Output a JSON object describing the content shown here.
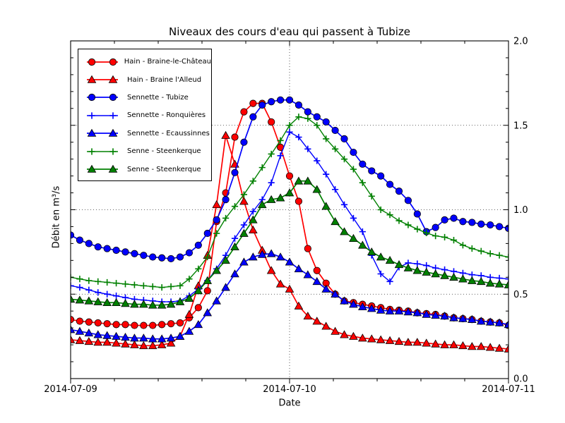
{
  "chart_data": {
    "type": "line",
    "title": "Niveaux des cours d'eau qui passent à Tubize",
    "xlabel": "Date",
    "ylabel": "Débit en m³/s",
    "x_tick_labels": [
      "2014-07-09",
      "2014-07-10",
      "2014-07-11"
    ],
    "y_tick_labels": [
      "0.0",
      "0.5",
      "1.0",
      "1.5",
      "2.0"
    ],
    "ylim": [
      0.0,
      2.0
    ],
    "x_range_hours": 48,
    "sample_interval_hours": 1,
    "x_minor_ticks_per_day": 5,
    "y_minor_step": 0.1,
    "grid": {
      "h_values": [
        0.5,
        1.0,
        1.5
      ],
      "v_hours": [
        24
      ],
      "style": "dotted"
    },
    "legend": {
      "position": "upper-left"
    },
    "series": [
      {
        "name": "Hain - Braine-le-Château",
        "color": "#ff0000",
        "marker": "circle",
        "values": [
          0.35,
          0.34,
          0.335,
          0.33,
          0.325,
          0.32,
          0.32,
          0.315,
          0.315,
          0.315,
          0.32,
          0.325,
          0.33,
          0.36,
          0.42,
          0.52,
          0.93,
          1.1,
          1.43,
          1.58,
          1.63,
          1.63,
          1.52,
          1.37,
          1.2,
          1.05,
          0.77,
          0.64,
          0.565,
          0.5,
          0.46,
          0.45,
          0.44,
          0.43,
          0.42,
          0.41,
          0.405,
          0.4,
          0.39,
          0.385,
          0.38,
          0.37,
          0.36,
          0.355,
          0.35,
          0.34,
          0.335,
          0.33,
          0.315
        ]
      },
      {
        "name": "Hain - Braine l'Alleud",
        "color": "#ff0000",
        "marker": "triangle",
        "values": [
          0.23,
          0.225,
          0.22,
          0.215,
          0.215,
          0.21,
          0.205,
          0.2,
          0.195,
          0.195,
          0.2,
          0.21,
          0.25,
          0.38,
          0.55,
          0.73,
          1.03,
          1.44,
          1.27,
          1.05,
          0.88,
          0.76,
          0.64,
          0.56,
          0.53,
          0.43,
          0.37,
          0.34,
          0.31,
          0.28,
          0.26,
          0.25,
          0.24,
          0.235,
          0.23,
          0.225,
          0.22,
          0.215,
          0.215,
          0.21,
          0.205,
          0.2,
          0.2,
          0.195,
          0.19,
          0.19,
          0.185,
          0.18,
          0.175
        ]
      },
      {
        "name": "Sennette - Tubize",
        "color": "#0000ff",
        "marker": "circle",
        "values": [
          0.85,
          0.82,
          0.8,
          0.78,
          0.77,
          0.76,
          0.75,
          0.74,
          0.73,
          0.72,
          0.715,
          0.71,
          0.72,
          0.745,
          0.79,
          0.86,
          0.94,
          1.06,
          1.22,
          1.4,
          1.55,
          1.62,
          1.64,
          1.65,
          1.65,
          1.62,
          1.58,
          1.55,
          1.52,
          1.47,
          1.42,
          1.34,
          1.27,
          1.23,
          1.2,
          1.15,
          1.11,
          1.055,
          0.975,
          0.87,
          0.895,
          0.94,
          0.95,
          0.93,
          0.925,
          0.915,
          0.91,
          0.9,
          0.89
        ]
      },
      {
        "name": "Sennette - Ronquières",
        "color": "#0000ff",
        "marker": "plus",
        "values": [
          0.55,
          0.54,
          0.525,
          0.51,
          0.5,
          0.49,
          0.48,
          0.47,
          0.465,
          0.46,
          0.455,
          0.455,
          0.46,
          0.49,
          0.53,
          0.58,
          0.65,
          0.73,
          0.83,
          0.91,
          0.99,
          1.06,
          1.16,
          1.32,
          1.46,
          1.43,
          1.36,
          1.29,
          1.21,
          1.12,
          1.03,
          0.95,
          0.87,
          0.73,
          0.62,
          0.575,
          0.66,
          0.685,
          0.68,
          0.67,
          0.655,
          0.645,
          0.635,
          0.625,
          0.615,
          0.61,
          0.6,
          0.595,
          0.59
        ]
      },
      {
        "name": "Sennette - Ecaussinnes",
        "color": "#0000ff",
        "marker": "triangle",
        "values": [
          0.29,
          0.28,
          0.27,
          0.26,
          0.255,
          0.25,
          0.245,
          0.24,
          0.24,
          0.235,
          0.235,
          0.24,
          0.25,
          0.28,
          0.32,
          0.39,
          0.46,
          0.54,
          0.62,
          0.69,
          0.72,
          0.735,
          0.74,
          0.72,
          0.69,
          0.65,
          0.615,
          0.575,
          0.53,
          0.5,
          0.46,
          0.44,
          0.425,
          0.415,
          0.405,
          0.4,
          0.4,
          0.395,
          0.39,
          0.38,
          0.375,
          0.37,
          0.36,
          0.355,
          0.35,
          0.34,
          0.335,
          0.33,
          0.32
        ]
      },
      {
        "name": "Senne - Steenkerque",
        "color": "#008000",
        "marker": "plus",
        "values": [
          0.6,
          0.59,
          0.58,
          0.575,
          0.57,
          0.565,
          0.56,
          0.555,
          0.55,
          0.545,
          0.54,
          0.545,
          0.55,
          0.59,
          0.65,
          0.72,
          0.86,
          0.95,
          1.02,
          1.09,
          1.17,
          1.25,
          1.33,
          1.41,
          1.5,
          1.55,
          1.54,
          1.5,
          1.42,
          1.36,
          1.3,
          1.24,
          1.16,
          1.08,
          1.0,
          0.97,
          0.935,
          0.91,
          0.885,
          0.8625,
          0.845,
          0.8375,
          0.82,
          0.79,
          0.77,
          0.755,
          0.74,
          0.73,
          0.72
        ]
      },
      {
        "name": "Senne - Steenkerque",
        "color": "#008000",
        "marker": "triangle",
        "values": [
          0.47,
          0.465,
          0.46,
          0.455,
          0.45,
          0.45,
          0.445,
          0.44,
          0.44,
          0.435,
          0.435,
          0.44,
          0.455,
          0.475,
          0.52,
          0.58,
          0.64,
          0.7,
          0.78,
          0.86,
          0.94,
          1.03,
          1.06,
          1.07,
          1.1,
          1.17,
          1.17,
          1.12,
          1.02,
          0.93,
          0.87,
          0.83,
          0.79,
          0.75,
          0.72,
          0.7,
          0.675,
          0.655,
          0.64,
          0.63,
          0.62,
          0.61,
          0.6,
          0.59,
          0.58,
          0.575,
          0.565,
          0.56,
          0.555
        ]
      }
    ]
  }
}
